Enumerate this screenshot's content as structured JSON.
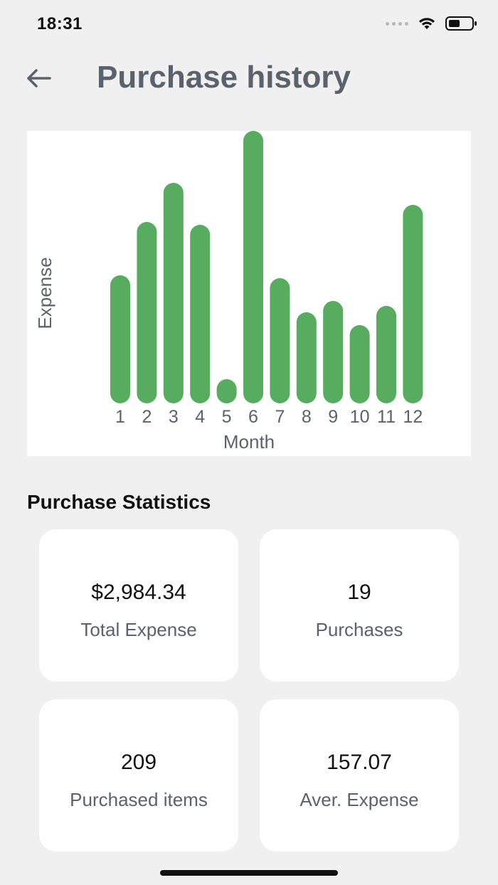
{
  "status_bar": {
    "time": "18:31"
  },
  "header": {
    "title": "Purchase history"
  },
  "chart_data": {
    "type": "bar",
    "categories": [
      "1",
      "2",
      "3",
      "4",
      "5",
      "6",
      "7",
      "8",
      "9",
      "10",
      "11",
      "12"
    ],
    "values": [
      180,
      255,
      310,
      251,
      34,
      383,
      176,
      128,
      144,
      110,
      137,
      279
    ],
    "xlabel": "Month",
    "ylabel": "Expense",
    "ylim": [
      0,
      383
    ],
    "grid": false,
    "bar_color": "#57ac60"
  },
  "stats": {
    "title": "Purchase Statistics",
    "cards": [
      {
        "value": "$2,984.34",
        "label": "Total Expense"
      },
      {
        "value": "19",
        "label": "Purchases"
      },
      {
        "value": "209",
        "label": "Purchased items"
      },
      {
        "value": "157.07",
        "label": "Aver. Expense"
      }
    ]
  },
  "colors": {
    "background": "#f0f0f0",
    "card": "#ffffff",
    "title_gray": "#5a626c",
    "bar_green": "#57ac60"
  }
}
